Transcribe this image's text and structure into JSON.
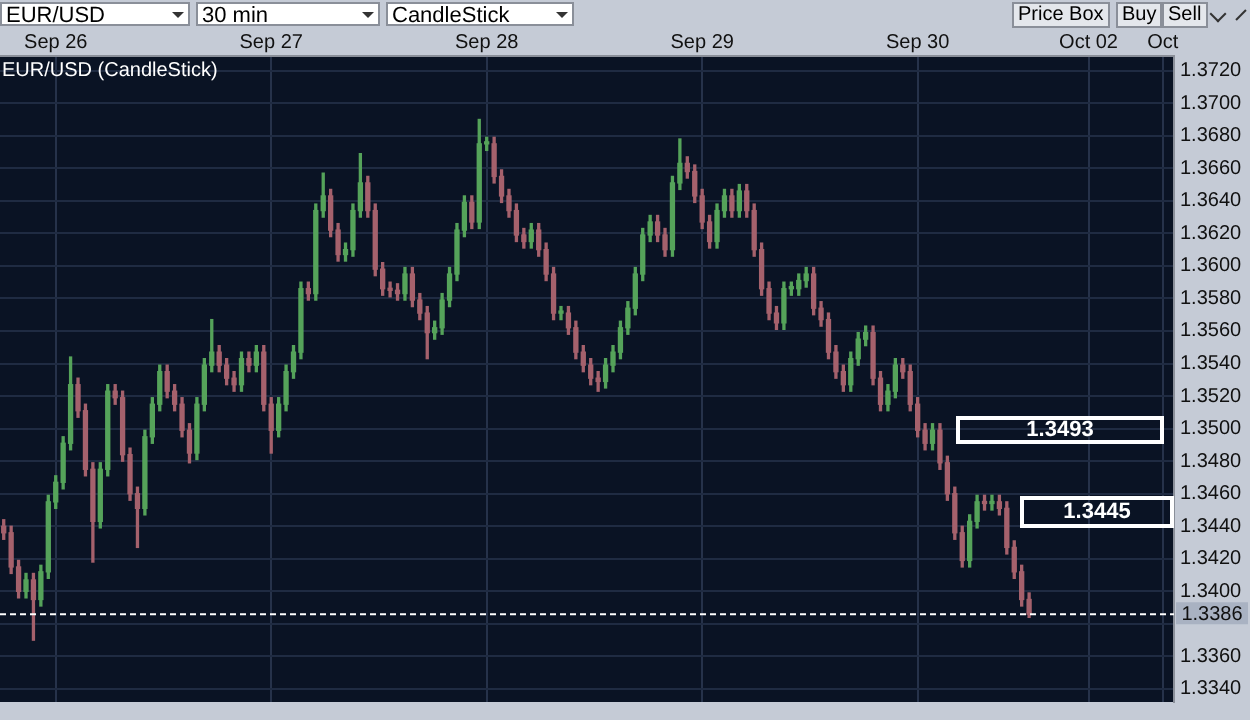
{
  "chart_data": {
    "type": "candlestick",
    "title": "EUR/USD (CandleStick)",
    "annotations": [
      "EUR/USD",
      "30 min",
      "CandleStick",
      "Price Box",
      "Buy",
      "Sell",
      "1.3493",
      "1.3445"
    ],
    "categories": [
      null,
      null,
      null,
      null,
      null,
      null,
      null,
      "Sep 26",
      null,
      null,
      null,
      null,
      null,
      null,
      null,
      null,
      null,
      null,
      null,
      null,
      null,
      null,
      null,
      null,
      null,
      null,
      null,
      null,
      null,
      null,
      null,
      null,
      null,
      null,
      null,
      null,
      "Sep 27",
      null,
      null,
      null,
      null,
      null,
      null,
      null,
      null,
      null,
      null,
      null,
      null,
      null,
      null,
      null,
      null,
      null,
      null,
      null,
      null,
      null,
      null,
      null,
      null,
      null,
      null,
      null,
      null,
      "Sep 28",
      null,
      null,
      null,
      null,
      null,
      null,
      null,
      null,
      null,
      null,
      null,
      null,
      null,
      null,
      null,
      null,
      null,
      null,
      null,
      null,
      null,
      null,
      null,
      null,
      null,
      null,
      null,
      null,
      "Sep 29",
      null,
      null,
      null,
      null,
      null,
      null,
      null,
      null,
      null,
      null,
      null,
      null,
      null,
      null,
      null,
      null,
      null,
      null,
      null,
      null,
      null,
      null,
      null,
      null,
      null,
      null,
      null,
      null,
      "Sep 30",
      null,
      null,
      null,
      null,
      null,
      null,
      null,
      null,
      null,
      null,
      null,
      null,
      null,
      null,
      null,
      null,
      null,
      null,
      null,
      null,
      null,
      null,
      "Oct 02",
      null,
      null,
      null,
      null,
      null,
      null,
      null,
      null,
      null,
      "Oct",
      null
    ],
    "ohlc": [
      [
        1.344,
        1.3444,
        1.3432,
        1.3436
      ],
      [
        1.3436,
        1.344,
        1.3411,
        1.3415
      ],
      [
        1.3415,
        1.3419,
        1.3396,
        1.34
      ],
      [
        1.34,
        1.3411,
        1.3396,
        1.3407
      ],
      [
        1.3407,
        1.3411,
        1.337,
        1.3395
      ],
      [
        1.3395,
        1.3416,
        1.3391,
        1.3412
      ],
      [
        1.3412,
        1.3459,
        1.3408,
        1.3455
      ],
      [
        1.3455,
        1.3471,
        1.3451,
        1.3467
      ],
      [
        1.3467,
        1.3495,
        1.3463,
        1.3491
      ],
      [
        1.3491,
        1.3544,
        1.3487,
        1.3527
      ],
      [
        1.3527,
        1.3531,
        1.3507,
        1.3511
      ],
      [
        1.3511,
        1.3515,
        1.3471,
        1.3475
      ],
      [
        1.3475,
        1.3479,
        1.3418,
        1.3443
      ],
      [
        1.3443,
        1.3479,
        1.3439,
        1.3475
      ],
      [
        1.3475,
        1.3527,
        1.3471,
        1.3523
      ],
      [
        1.3523,
        1.3527,
        1.3515,
        1.3519
      ],
      [
        1.3519,
        1.3523,
        1.348,
        1.3484
      ],
      [
        1.3484,
        1.3488,
        1.3456,
        1.346
      ],
      [
        1.346,
        1.3464,
        1.3427,
        1.3451
      ],
      [
        1.3451,
        1.3499,
        1.3447,
        1.3495
      ],
      [
        1.3495,
        1.3519,
        1.3491,
        1.3515
      ],
      [
        1.3515,
        1.3539,
        1.3511,
        1.3535
      ],
      [
        1.3535,
        1.3539,
        1.3519,
        1.3523
      ],
      [
        1.3523,
        1.3527,
        1.3511,
        1.3515
      ],
      [
        1.3515,
        1.3519,
        1.3495,
        1.3499
      ],
      [
        1.3499,
        1.3503,
        1.3479,
        1.3485
      ],
      [
        1.3485,
        1.3519,
        1.3481,
        1.3515
      ],
      [
        1.3515,
        1.3543,
        1.3511,
        1.3539
      ],
      [
        1.3539,
        1.3567,
        1.3535,
        1.3547
      ],
      [
        1.3547,
        1.3551,
        1.3535,
        1.3539
      ],
      [
        1.3539,
        1.3543,
        1.3527,
        1.3531
      ],
      [
        1.3531,
        1.3535,
        1.3523,
        1.3527
      ],
      [
        1.3527,
        1.3547,
        1.3523,
        1.3543
      ],
      [
        1.3543,
        1.3547,
        1.3535,
        1.3539
      ],
      [
        1.3539,
        1.3551,
        1.3535,
        1.3547
      ],
      [
        1.3547,
        1.3551,
        1.3511,
        1.3515
      ],
      [
        1.3515,
        1.3519,
        1.3485,
        1.3499
      ],
      [
        1.3499,
        1.3519,
        1.3495,
        1.3515
      ],
      [
        1.3515,
        1.3539,
        1.3511,
        1.3535
      ],
      [
        1.3535,
        1.3551,
        1.3531,
        1.3547
      ],
      [
        1.3547,
        1.359,
        1.3543,
        1.3586
      ],
      [
        1.3586,
        1.359,
        1.3579,
        1.3583
      ],
      [
        1.3583,
        1.3638,
        1.3579,
        1.3634
      ],
      [
        1.3634,
        1.3657,
        1.363,
        1.3643
      ],
      [
        1.3643,
        1.3647,
        1.3618,
        1.3622
      ],
      [
        1.3622,
        1.3626,
        1.3603,
        1.3607
      ],
      [
        1.3607,
        1.3614,
        1.3603,
        1.361
      ],
      [
        1.361,
        1.3638,
        1.3606,
        1.3634
      ],
      [
        1.3634,
        1.3669,
        1.363,
        1.3651
      ],
      [
        1.3651,
        1.3655,
        1.363,
        1.3634
      ],
      [
        1.3634,
        1.3638,
        1.3594,
        1.3598
      ],
      [
        1.3598,
        1.3602,
        1.3582,
        1.3586
      ],
      [
        1.3586,
        1.359,
        1.3581,
        1.3585
      ],
      [
        1.3585,
        1.3589,
        1.3579,
        1.3583
      ],
      [
        1.3583,
        1.3599,
        1.3579,
        1.3595
      ],
      [
        1.3595,
        1.3599,
        1.3575,
        1.3579
      ],
      [
        1.3579,
        1.3583,
        1.3567,
        1.3571
      ],
      [
        1.3571,
        1.3575,
        1.3543,
        1.3559
      ],
      [
        1.3559,
        1.3566,
        1.3555,
        1.3562
      ],
      [
        1.3562,
        1.3583,
        1.3558,
        1.3579
      ],
      [
        1.3579,
        1.3599,
        1.3575,
        1.3595
      ],
      [
        1.3595,
        1.3626,
        1.3591,
        1.3622
      ],
      [
        1.3622,
        1.3643,
        1.3618,
        1.3639
      ],
      [
        1.3639,
        1.3643,
        1.3623,
        1.3627
      ],
      [
        1.3627,
        1.369,
        1.3623,
        1.3675
      ],
      [
        1.3675,
        1.3679,
        1.3671,
        1.3675
      ],
      [
        1.3675,
        1.3679,
        1.3651,
        1.3655
      ],
      [
        1.3655,
        1.3659,
        1.3639,
        1.3643
      ],
      [
        1.3643,
        1.3647,
        1.363,
        1.3634
      ],
      [
        1.3634,
        1.3638,
        1.3615,
        1.3619
      ],
      [
        1.3619,
        1.3623,
        1.3611,
        1.3615
      ],
      [
        1.3615,
        1.3626,
        1.3611,
        1.3622
      ],
      [
        1.3622,
        1.3626,
        1.3606,
        1.361
      ],
      [
        1.361,
        1.3614,
        1.3591,
        1.3595
      ],
      [
        1.3595,
        1.3599,
        1.3567,
        1.3571
      ],
      [
        1.3571,
        1.3575,
        1.3567,
        1.3571
      ],
      [
        1.3571,
        1.3575,
        1.3558,
        1.3562
      ],
      [
        1.3562,
        1.3566,
        1.3543,
        1.3547
      ],
      [
        1.3547,
        1.3551,
        1.3535,
        1.3539
      ],
      [
        1.3539,
        1.3543,
        1.3527,
        1.3531
      ],
      [
        1.3531,
        1.3535,
        1.3523,
        1.3529
      ],
      [
        1.3529,
        1.3543,
        1.3525,
        1.3539
      ],
      [
        1.3539,
        1.3551,
        1.3535,
        1.3547
      ],
      [
        1.3547,
        1.3566,
        1.3543,
        1.3562
      ],
      [
        1.3562,
        1.3578,
        1.3558,
        1.3574
      ],
      [
        1.3574,
        1.3599,
        1.357,
        1.3595
      ],
      [
        1.3595,
        1.3623,
        1.3591,
        1.3619
      ],
      [
        1.3619,
        1.3631,
        1.3615,
        1.3627
      ],
      [
        1.3627,
        1.3631,
        1.3615,
        1.3619
      ],
      [
        1.3619,
        1.3623,
        1.3606,
        1.361
      ],
      [
        1.361,
        1.3655,
        1.3606,
        1.3651
      ],
      [
        1.3651,
        1.3678,
        1.3647,
        1.3663
      ],
      [
        1.3663,
        1.3667,
        1.3654,
        1.3658
      ],
      [
        1.3658,
        1.3662,
        1.3639,
        1.3643
      ],
      [
        1.3643,
        1.3647,
        1.3623,
        1.3627
      ],
      [
        1.3627,
        1.3631,
        1.3611,
        1.3615
      ],
      [
        1.3615,
        1.3638,
        1.3611,
        1.3634
      ],
      [
        1.3634,
        1.3647,
        1.363,
        1.3643
      ],
      [
        1.3643,
        1.3647,
        1.363,
        1.3634
      ],
      [
        1.3634,
        1.365,
        1.363,
        1.3646
      ],
      [
        1.3646,
        1.365,
        1.363,
        1.3634
      ],
      [
        1.3634,
        1.3638,
        1.3606,
        1.361
      ],
      [
        1.361,
        1.3614,
        1.3582,
        1.3586
      ],
      [
        1.3586,
        1.359,
        1.3567,
        1.3571
      ],
      [
        1.3571,
        1.3575,
        1.3561,
        1.3565
      ],
      [
        1.3565,
        1.359,
        1.3561,
        1.3586
      ],
      [
        1.3586,
        1.359,
        1.3582,
        1.3586
      ],
      [
        1.3586,
        1.3595,
        1.3582,
        1.3591
      ],
      [
        1.3591,
        1.3599,
        1.3587,
        1.3595
      ],
      [
        1.3595,
        1.3599,
        1.357,
        1.3574
      ],
      [
        1.3574,
        1.3578,
        1.3563,
        1.3567
      ],
      [
        1.3567,
        1.3571,
        1.3543,
        1.3547
      ],
      [
        1.3547,
        1.3551,
        1.3531,
        1.3535
      ],
      [
        1.3535,
        1.3539,
        1.3523,
        1.3527
      ],
      [
        1.3527,
        1.3547,
        1.3523,
        1.3543
      ],
      [
        1.3543,
        1.3559,
        1.3539,
        1.3555
      ],
      [
        1.3555,
        1.3563,
        1.3551,
        1.3559
      ],
      [
        1.3559,
        1.3563,
        1.3527,
        1.3531
      ],
      [
        1.3531,
        1.3535,
        1.3511,
        1.3515
      ],
      [
        1.3515,
        1.3527,
        1.3511,
        1.3523
      ],
      [
        1.3523,
        1.3543,
        1.3519,
        1.3539
      ],
      [
        1.3539,
        1.3543,
        1.3531,
        1.3535
      ],
      [
        1.3535,
        1.3539,
        1.3511,
        1.3515
      ],
      [
        1.3515,
        1.3519,
        1.3495,
        1.3499
      ],
      [
        1.3499,
        1.3503,
        1.3487,
        1.3491
      ],
      [
        1.3491,
        1.3503,
        1.3487,
        1.3499
      ],
      [
        1.3499,
        1.3503,
        1.3475,
        1.3479
      ],
      [
        1.3479,
        1.3483,
        1.3456,
        1.346
      ],
      [
        1.346,
        1.3464,
        1.3432,
        1.3436
      ],
      [
        1.3436,
        1.344,
        1.3415,
        1.3419
      ],
      [
        1.3419,
        1.3447,
        1.3415,
        1.3443
      ],
      [
        1.3443,
        1.3459,
        1.3439,
        1.3455
      ],
      [
        1.3455,
        1.3459,
        1.345,
        1.3454
      ],
      [
        1.3454,
        1.3459,
        1.345,
        1.3455
      ],
      [
        1.3455,
        1.3459,
        1.3447,
        1.3451
      ],
      [
        1.3451,
        1.3455,
        1.3423,
        1.3427
      ],
      [
        1.3427,
        1.3431,
        1.3408,
        1.3412
      ],
      [
        1.3412,
        1.3416,
        1.3391,
        1.3395
      ],
      [
        1.3395,
        1.3399,
        1.3384,
        1.3386
      ],
      null,
      null,
      null,
      null,
      null,
      null,
      null,
      null,
      null,
      null,
      null,
      null,
      null,
      null,
      null,
      null,
      null,
      null,
      null
    ],
    "ylim": [
      1.3332,
      1.3729
    ],
    "yticks": [
      {
        "value": 1.334,
        "label": "1.3340"
      },
      {
        "value": 1.336,
        "label": "1.3360"
      },
      {
        "value": 1.338,
        "label": null
      },
      {
        "value": 1.34,
        "label": "1.3400"
      },
      {
        "value": 1.342,
        "label": "1.3420"
      },
      {
        "value": 1.344,
        "label": "1.3440"
      },
      {
        "value": 1.346,
        "label": "1.3460"
      },
      {
        "value": 1.348,
        "label": "1.3480"
      },
      {
        "value": 1.35,
        "label": "1.3500"
      },
      {
        "value": 1.352,
        "label": "1.3520"
      },
      {
        "value": 1.354,
        "label": "1.3540"
      },
      {
        "value": 1.356,
        "label": "1.3560"
      },
      {
        "value": 1.358,
        "label": "1.3580"
      },
      {
        "value": 1.36,
        "label": "1.3600"
      },
      {
        "value": 1.362,
        "label": "1.3620"
      },
      {
        "value": 1.364,
        "label": "1.3640"
      },
      {
        "value": 1.366,
        "label": "1.3660"
      },
      {
        "value": 1.368,
        "label": "1.3680"
      },
      {
        "value": 1.37,
        "label": "1.3700"
      },
      {
        "value": 1.372,
        "label": "1.3720"
      }
    ],
    "ref_lines": [
      {
        "axis": "y",
        "value": 1.3386,
        "label": "1.3386",
        "color": "#ffffff",
        "line_style": "dashed"
      }
    ],
    "grid": true,
    "legend": false
  }
}
